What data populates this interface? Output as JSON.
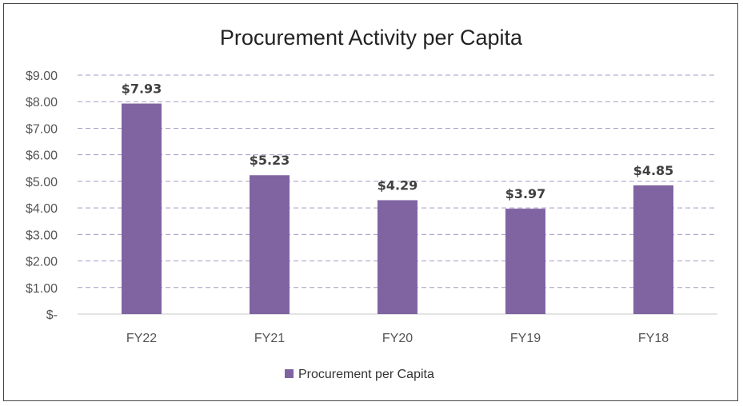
{
  "chart_data": {
    "type": "bar",
    "title": "Procurement Activity per Capita",
    "categories": [
      "FY22",
      "FY21",
      "FY20",
      "FY19",
      "FY18"
    ],
    "series": [
      {
        "name": "Procurement per Capita",
        "values": [
          7.93,
          5.23,
          4.29,
          3.97,
          4.85
        ],
        "labels": [
          "$7.93",
          "$5.23",
          "$4.29",
          "$3.97",
          "$4.85"
        ],
        "color": "#8064a2"
      }
    ],
    "y_ticks": [
      "$-",
      "$1.00",
      "$2.00",
      "$3.00",
      "$4.00",
      "$5.00",
      "$6.00",
      "$7.00",
      "$8.00",
      "$9.00"
    ],
    "ylim": [
      0,
      9
    ],
    "xlabel": "",
    "ylabel": "",
    "grid": true,
    "legend_position": "bottom"
  }
}
